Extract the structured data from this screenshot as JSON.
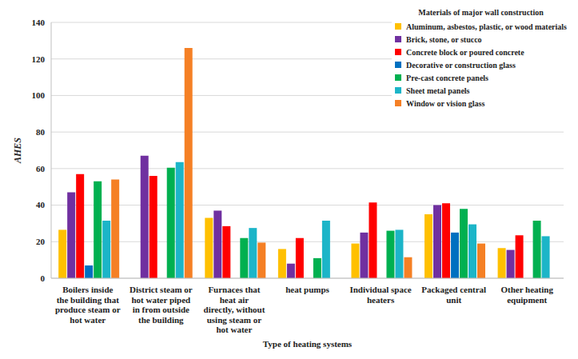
{
  "chart_data": {
    "type": "bar",
    "y_label": "AHES",
    "x_label": "Type of heating systems",
    "legend_title": "Materials of major wall construction",
    "categories": [
      "Boilers inside the building that produce steam or hot water",
      "District steam or hot water piped in from outside the building",
      "Furnaces that heat air directly, without using steam or hot water",
      "heat pumps",
      "Individual space heaters",
      "Packaged central unit",
      "Other heating equipment"
    ],
    "series": [
      {
        "name": "Aluminum, asbestos, plastic, or wood materials",
        "color": "#FFC000",
        "values": [
          26.5,
          null,
          33,
          16,
          19,
          35,
          16.5
        ]
      },
      {
        "name": "Brick, stone, or stucco",
        "color": "#7030A0",
        "values": [
          47,
          67,
          37,
          8,
          25,
          40,
          15.5
        ]
      },
      {
        "name": "Concrete block or poured concrete",
        "color": "#FF0000",
        "values": [
          57,
          56,
          28.5,
          22,
          41.5,
          41,
          23.5
        ]
      },
      {
        "name": "Decorative or construction glass",
        "color": "#0070C0",
        "values": [
          7,
          null,
          null,
          null,
          null,
          25,
          null
        ]
      },
      {
        "name": "Pre-cast concrete panels",
        "color": "#00B050",
        "values": [
          53,
          60.5,
          22,
          11,
          26,
          38,
          31.5
        ]
      },
      {
        "name": "Sheet metal panels",
        "color": "#1CB5C8",
        "values": [
          31.5,
          63.5,
          27.5,
          31.5,
          26.5,
          29.5,
          23
        ]
      },
      {
        "name": "Window or vision glass",
        "color": "#F58025",
        "values": [
          54,
          126,
          19.5,
          null,
          11.5,
          19,
          null
        ]
      }
    ],
    "ylim": [
      0,
      140
    ],
    "yticks": [
      0,
      20,
      40,
      60,
      80,
      100,
      120,
      140
    ],
    "grid": true,
    "legend": "top-right"
  }
}
